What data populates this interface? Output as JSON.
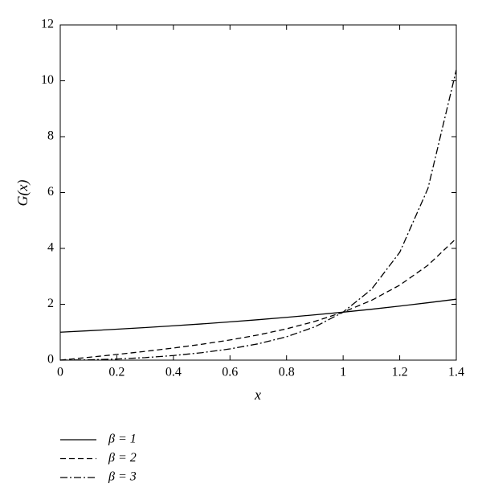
{
  "chart_data": {
    "type": "line",
    "xlabel": "x",
    "ylabel": "G(x)",
    "x": [
      0,
      0.1,
      0.2,
      0.3,
      0.4,
      0.5,
      0.6,
      0.7,
      0.8,
      0.9,
      1.0,
      1.1,
      1.2,
      1.3,
      1.4
    ],
    "series": [
      {
        "name": "β = 1",
        "color": "#000000",
        "linestyle": "solid",
        "values": [
          1,
          1.052,
          1.107,
          1.166,
          1.23,
          1.297,
          1.37,
          1.448,
          1.532,
          1.622,
          1.718,
          1.822,
          1.935,
          2.056,
          2.182
        ]
      },
      {
        "name": "β = 2",
        "color": "#000000",
        "linestyle": "dashed",
        "values": [
          0,
          0.1005,
          0.204,
          0.314,
          0.434,
          0.568,
          0.722,
          0.903,
          1.121,
          1.387,
          1.718,
          2.139,
          2.684,
          3.4,
          4.357
        ]
      },
      {
        "name": "β = 3",
        "color": "#000000",
        "linestyle": "dashdot",
        "values": [
          0,
          0.01,
          0.04,
          0.091,
          0.165,
          0.266,
          0.402,
          0.585,
          0.836,
          1.192,
          1.718,
          2.532,
          3.858,
          6.152,
          10.39
        ]
      }
    ],
    "xlim": [
      0,
      1.4
    ],
    "xticks": [
      0,
      0.2,
      0.4,
      0.6,
      0.8,
      1,
      1.2,
      1.4
    ],
    "ylim": [
      0,
      12
    ],
    "yticks": [
      0,
      2,
      4,
      6,
      8,
      10,
      12
    ],
    "grid": false,
    "legend": "bottom-left"
  }
}
